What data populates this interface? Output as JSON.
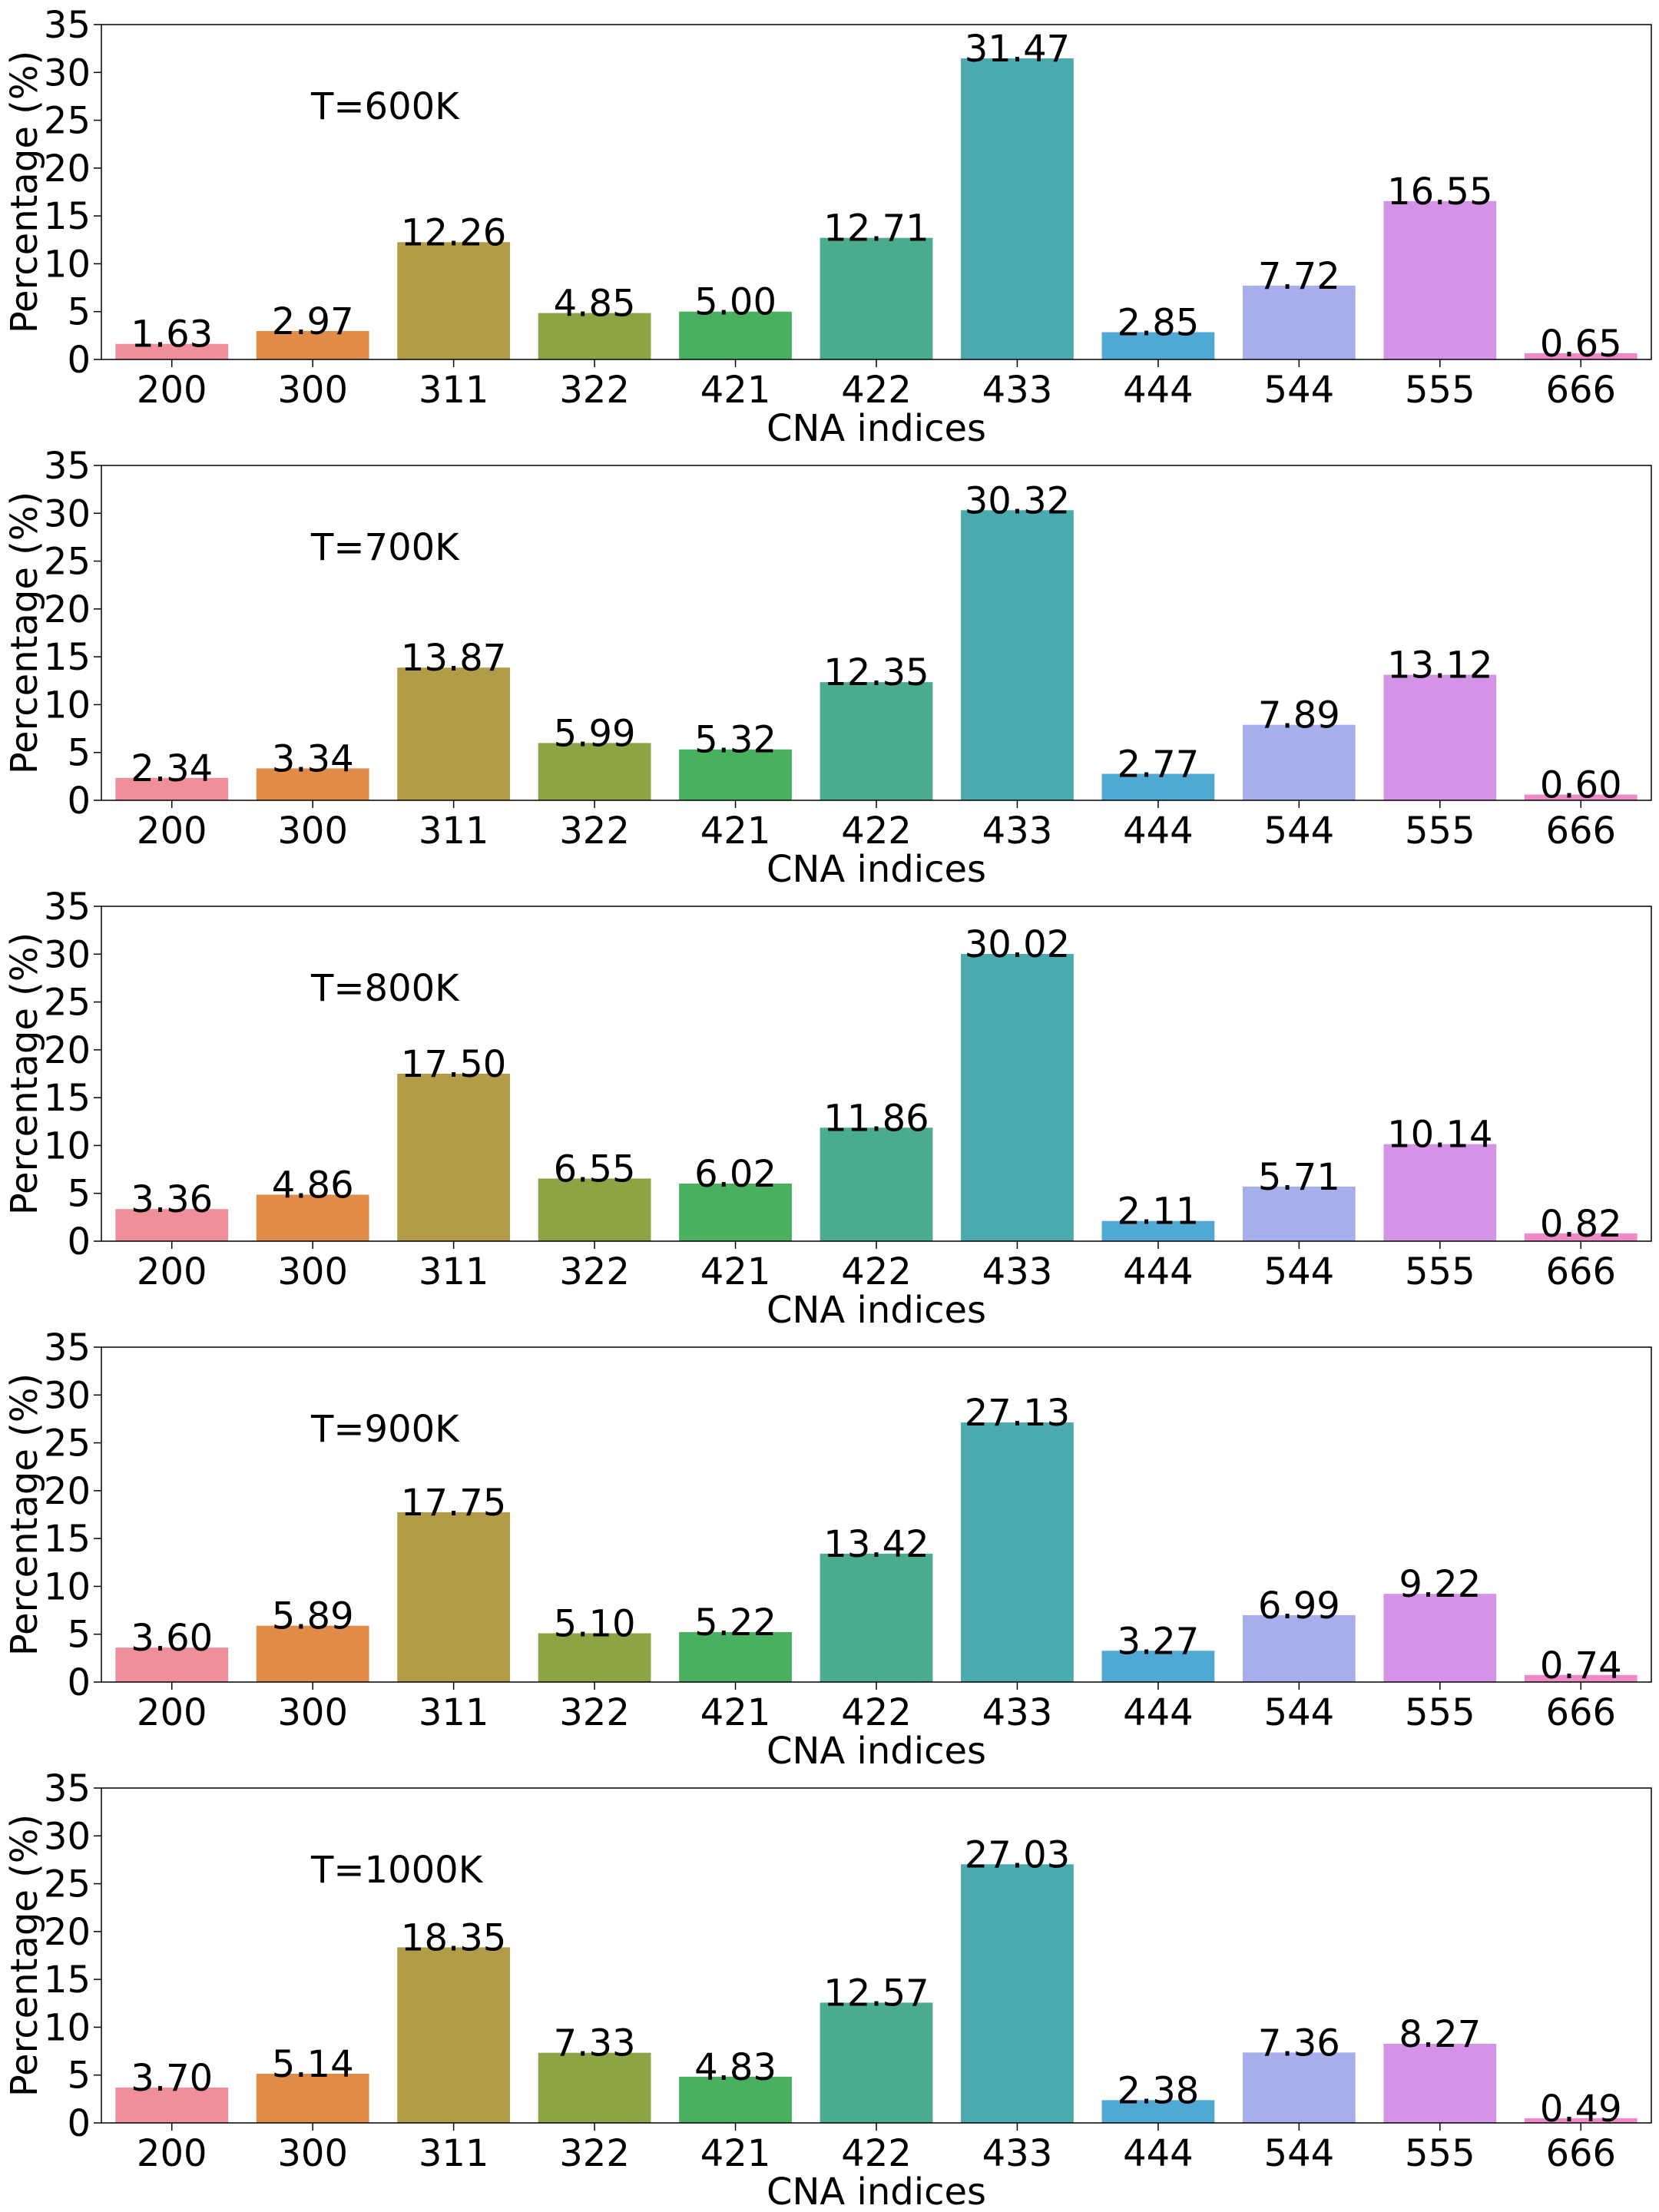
{
  "chart_data": [
    {
      "type": "bar",
      "annotation": "T=600K",
      "xlabel": "CNA indices",
      "ylabel": "Percentage (%)",
      "ylim": [
        0,
        35
      ],
      "yticks": [
        0,
        5,
        10,
        15,
        20,
        25,
        30,
        35
      ],
      "categories": [
        "200",
        "300",
        "311",
        "322",
        "421",
        "422",
        "433",
        "444",
        "544",
        "555",
        "666"
      ],
      "values": [
        1.63,
        2.97,
        12.26,
        4.85,
        5.0,
        12.71,
        31.47,
        2.85,
        7.72,
        16.55,
        0.65
      ],
      "value_labels": [
        "1.63",
        "2.97",
        "12.26",
        "4.85",
        "5.00",
        "12.71",
        "31.47",
        "2.85",
        "7.72",
        "16.55",
        "0.65"
      ]
    },
    {
      "type": "bar",
      "annotation": "T=700K",
      "xlabel": "CNA indices",
      "ylabel": "Percentage (%)",
      "ylim": [
        0,
        35
      ],
      "yticks": [
        0,
        5,
        10,
        15,
        20,
        25,
        30,
        35
      ],
      "categories": [
        "200",
        "300",
        "311",
        "322",
        "421",
        "422",
        "433",
        "444",
        "544",
        "555",
        "666"
      ],
      "values": [
        2.34,
        3.34,
        13.87,
        5.99,
        5.32,
        12.35,
        30.32,
        2.77,
        7.89,
        13.12,
        0.6
      ],
      "value_labels": [
        "2.34",
        "3.34",
        "13.87",
        "5.99",
        "5.32",
        "12.35",
        "30.32",
        "2.77",
        "7.89",
        "13.12",
        "0.60"
      ]
    },
    {
      "type": "bar",
      "annotation": "T=800K",
      "xlabel": "CNA indices",
      "ylabel": "Percentage (%)",
      "ylim": [
        0,
        35
      ],
      "yticks": [
        0,
        5,
        10,
        15,
        20,
        25,
        30,
        35
      ],
      "categories": [
        "200",
        "300",
        "311",
        "322",
        "421",
        "422",
        "433",
        "444",
        "544",
        "555",
        "666"
      ],
      "values": [
        3.36,
        4.86,
        17.5,
        6.55,
        6.02,
        11.86,
        30.02,
        2.11,
        5.71,
        10.14,
        0.82
      ],
      "value_labels": [
        "3.36",
        "4.86",
        "17.50",
        "6.55",
        "6.02",
        "11.86",
        "30.02",
        "2.11",
        "5.71",
        "10.14",
        "0.82"
      ]
    },
    {
      "type": "bar",
      "annotation": "T=900K",
      "xlabel": "CNA indices",
      "ylabel": "Percentage (%)",
      "ylim": [
        0,
        35
      ],
      "yticks": [
        0,
        5,
        10,
        15,
        20,
        25,
        30,
        35
      ],
      "categories": [
        "200",
        "300",
        "311",
        "322",
        "421",
        "422",
        "433",
        "444",
        "544",
        "555",
        "666"
      ],
      "values": [
        3.6,
        5.89,
        17.75,
        5.1,
        5.22,
        13.42,
        27.13,
        3.27,
        6.99,
        9.22,
        0.74
      ],
      "value_labels": [
        "3.60",
        "5.89",
        "17.75",
        "5.10",
        "5.22",
        "13.42",
        "27.13",
        "3.27",
        "6.99",
        "9.22",
        "0.74"
      ]
    },
    {
      "type": "bar",
      "annotation": "T=1000K",
      "xlabel": "CNA indices",
      "ylabel": "Percentage (%)",
      "ylim": [
        0,
        35
      ],
      "yticks": [
        0,
        5,
        10,
        15,
        20,
        25,
        30,
        35
      ],
      "categories": [
        "200",
        "300",
        "311",
        "322",
        "421",
        "422",
        "433",
        "444",
        "544",
        "555",
        "666"
      ],
      "values": [
        3.7,
        5.14,
        18.35,
        7.33,
        4.83,
        12.57,
        27.03,
        2.38,
        7.36,
        8.27,
        0.49
      ],
      "value_labels": [
        "3.70",
        "5.14",
        "18.35",
        "7.33",
        "4.83",
        "12.57",
        "27.03",
        "2.38",
        "7.36",
        "8.27",
        "0.49"
      ]
    }
  ],
  "bar_colors": [
    "#ee8f99",
    "#e08c48",
    "#b39c48",
    "#8ca444",
    "#48b05f",
    "#4aab8f",
    "#4baab0",
    "#50a9d4",
    "#a6aeec",
    "#d493e6",
    "#ee8ac7"
  ]
}
